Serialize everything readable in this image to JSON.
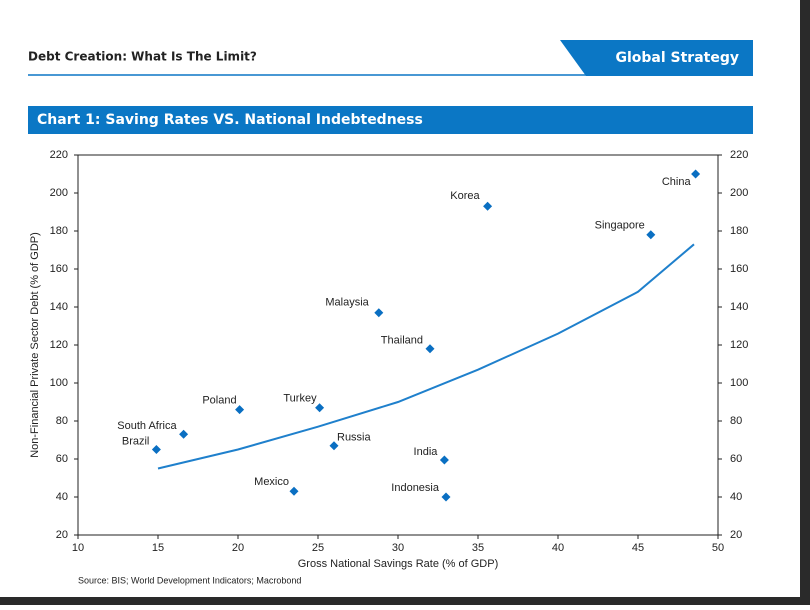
{
  "header": {
    "title": "Debt Creation: What Is The Limit?",
    "badge": "Global Strategy"
  },
  "chart_data": {
    "type": "scatter",
    "title": "Chart 1:  Saving Rates VS. National Indebtedness",
    "x_label": "Gross National Savings Rate (% of GDP)",
    "y_label": "Non-Financial Private Sector Debt  (% of GDP)",
    "source": "Source: BIS; World Development Indicators; Macrobond",
    "color": "#0a6fc2",
    "labels": [
      "China",
      "Korea",
      "Singapore",
      "Malaysia",
      "Thailand",
      "Turkey",
      "Poland",
      "South Africa",
      "Brazil",
      "Russia",
      "India",
      "Mexico",
      "Indonesia"
    ],
    "x": [
      48.6,
      35.6,
      45.8,
      28.8,
      32,
      25.1,
      20.1,
      16.6,
      14.9,
      26,
      32.9,
      23.5,
      33
    ],
    "values": [
      210,
      193,
      178,
      137,
      118,
      87,
      86,
      73,
      65,
      67,
      59.5,
      43,
      40
    ],
    "trend": {
      "color": "#1f80cc",
      "x": [
        15,
        20,
        25,
        30,
        35,
        40,
        45,
        48.5
      ],
      "values": [
        55,
        65,
        77,
        90,
        107,
        126,
        148,
        173
      ]
    },
    "xlim": [
      10,
      50
    ],
    "xticks": [
      10,
      15,
      20,
      25,
      30,
      35,
      40,
      45,
      50
    ],
    "ylim": [
      20,
      220
    ],
    "yticks": [
      20,
      40,
      60,
      80,
      100,
      120,
      140,
      160,
      180,
      200,
      220
    ],
    "y2lim": [
      20,
      220
    ],
    "y2ticks": [
      20,
      40,
      60,
      80,
      100,
      120,
      140,
      160,
      180,
      200,
      220
    ]
  }
}
